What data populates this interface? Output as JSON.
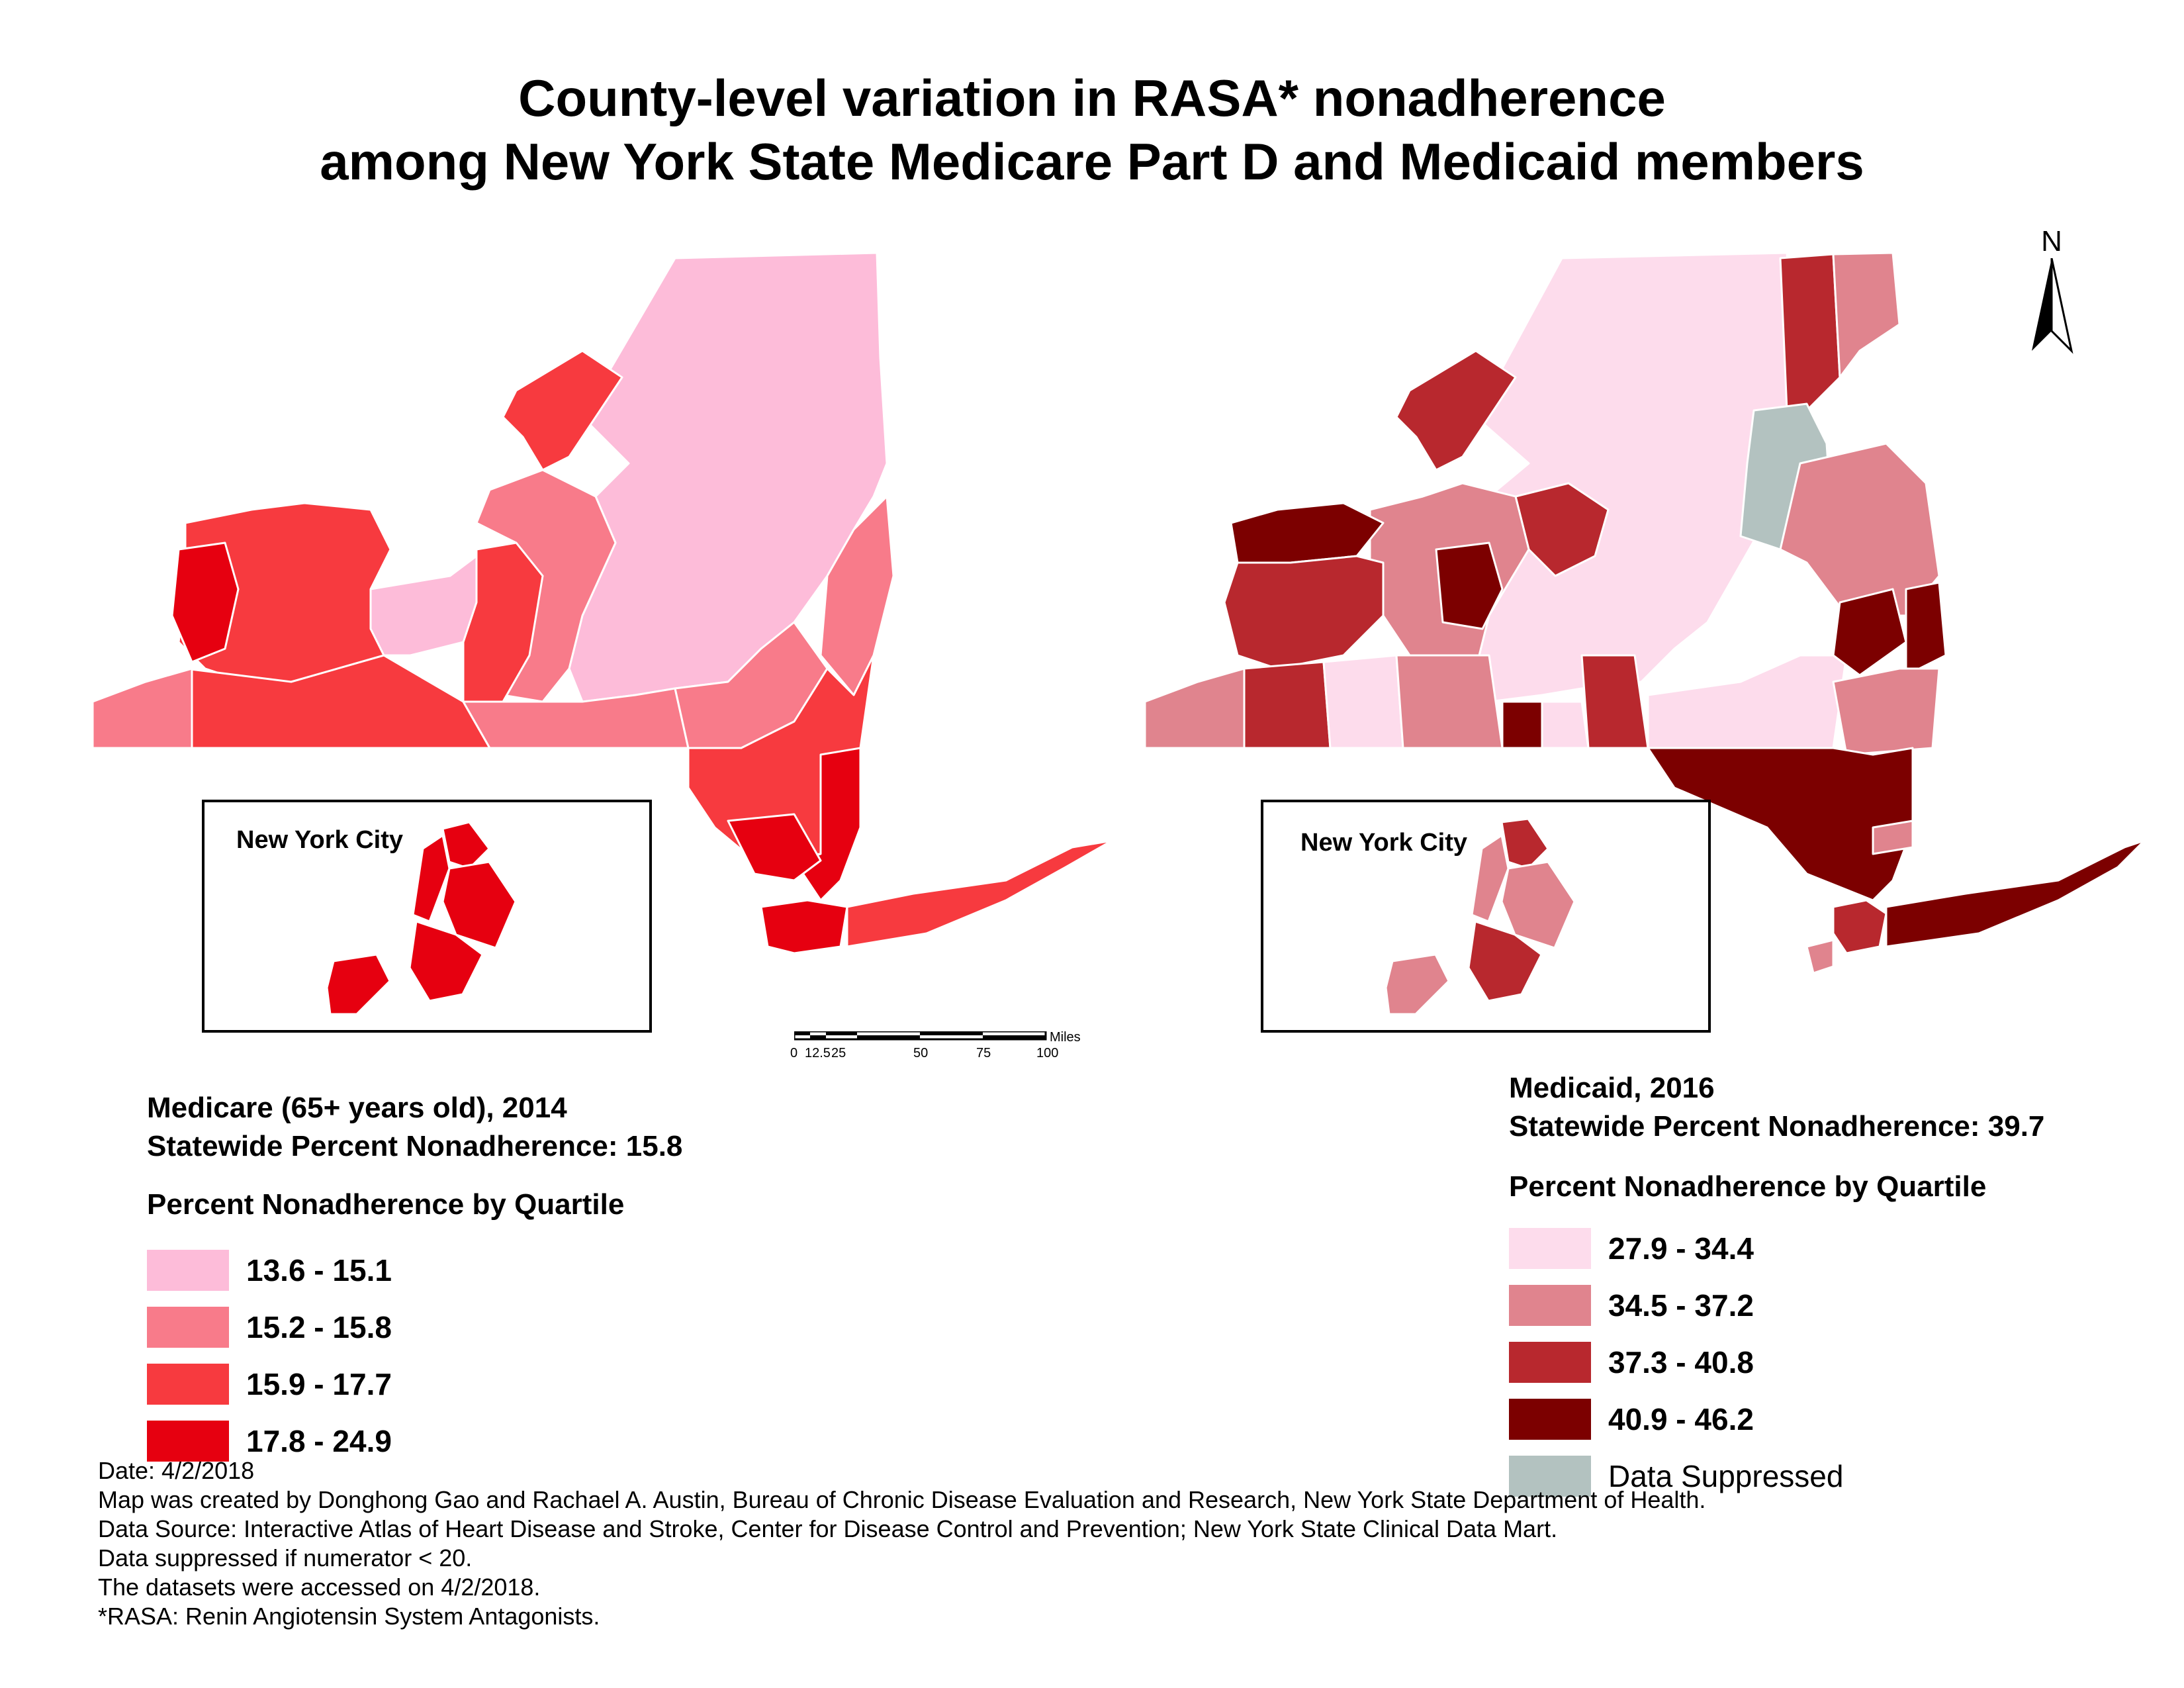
{
  "title": {
    "line1": "County-level variation in RASA* nonadherence",
    "line2": "among New York State Medicare Part D and Medicaid members"
  },
  "left_map": {
    "inset_label": "New York City",
    "section_title": "Medicare (65+ years old), 2014",
    "statewide": "Statewide Percent Nonadherence: 15.8",
    "legend_heading": "Percent Nonadherence by Quartile",
    "legend": [
      {
        "label": "13.6 - 15.1",
        "color": "#fdbcd9"
      },
      {
        "label": "15.2 - 15.8",
        "color": "#f87b8a"
      },
      {
        "label": "15.9 - 17.7",
        "color": "#f73a3f"
      },
      {
        "label": "17.8 - 24.9",
        "color": "#e60010"
      }
    ]
  },
  "right_map": {
    "inset_label": "New York City",
    "section_title": "Medicaid, 2016",
    "statewide": "Statewide Percent Nonadherence: 39.7",
    "legend_heading": "Percent Nonadherence by Quartile",
    "legend": [
      {
        "label": "27.9 - 34.4",
        "color": "#fddcec"
      },
      {
        "label": "34.5 - 37.2",
        "color": "#e0848e"
      },
      {
        "label": "37.3 - 40.8",
        "color": "#b8282e"
      },
      {
        "label": "40.9 - 46.2",
        "color": "#7c0000"
      },
      {
        "label": "Data Suppressed",
        "color": "#b3c2c0"
      }
    ]
  },
  "scale_bar": {
    "unit": "Miles",
    "ticks": [
      "0",
      "12.5",
      "25",
      "50",
      "75",
      "100"
    ]
  },
  "north_arrow": {
    "label": "N",
    "icon": "north-arrow-icon"
  },
  "notes": [
    "Date: 4/2/2018",
    "Map was created by Donghong Gao and Rachael A. Austin, Bureau of Chronic Disease Evaluation and Research, New York State Department of Health.",
    "Data Source: Interactive Atlas of Heart Disease and Stroke, Center for Disease Control and Prevention; New York State Clinical Data Mart.",
    "Data suppressed if numerator < 20.",
    "The datasets were accessed on 4/2/2018.",
    "*RASA: Renin Angiotensin System Antagonists."
  ]
}
